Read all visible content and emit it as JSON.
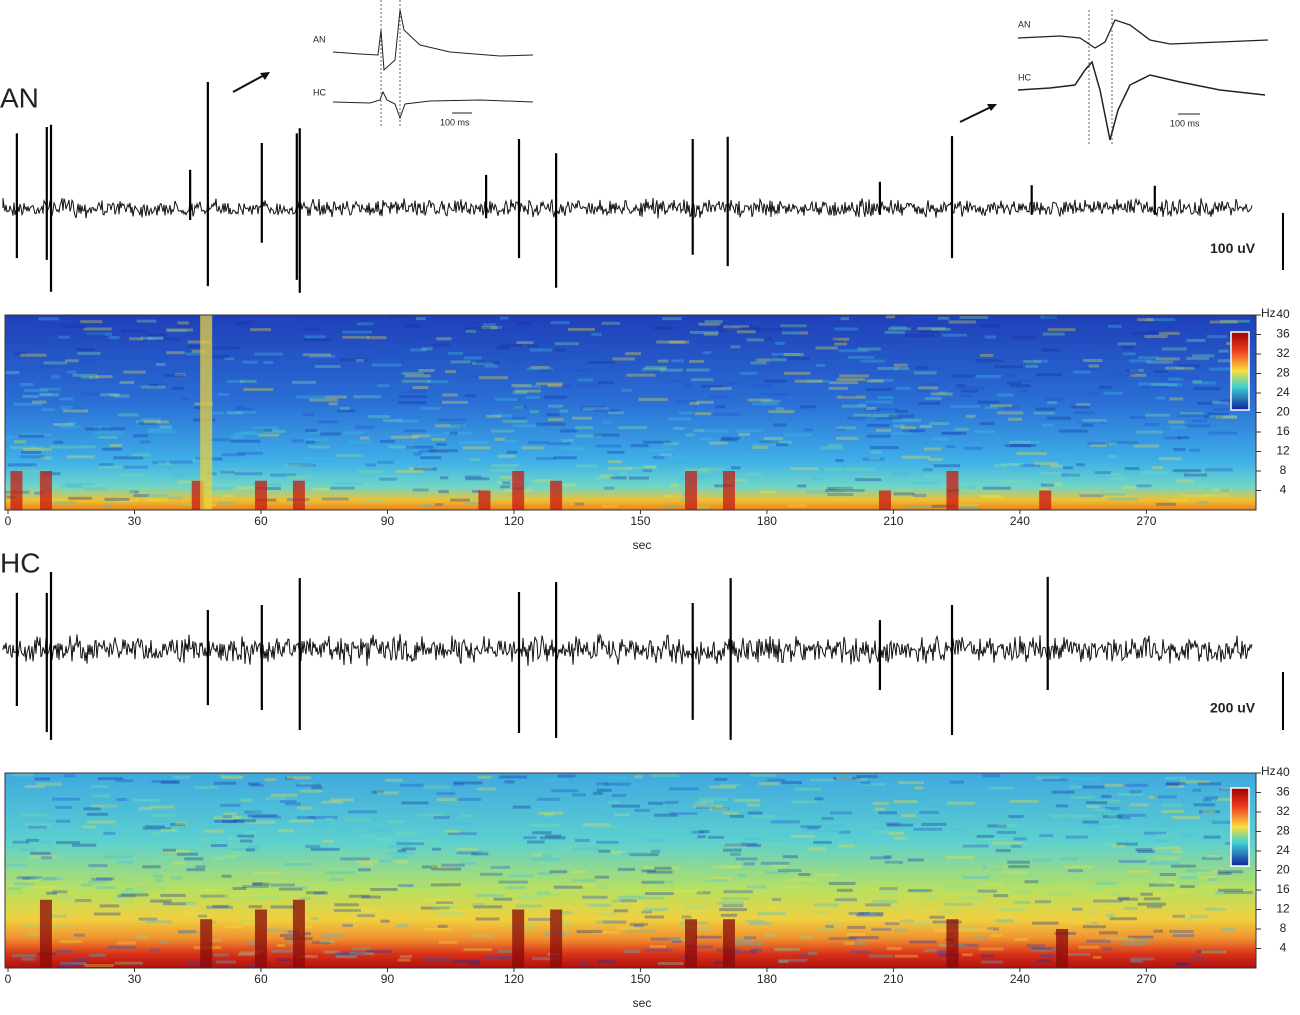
{
  "insets": [
    {
      "top_label": "AN",
      "bottom_label": "HC",
      "scale": "100 ms"
    },
    {
      "top_label": "AN",
      "bottom_label": "HC",
      "scale": "100 ms"
    }
  ],
  "panels": [
    {
      "label": "AN",
      "scale_bar": "100 uV",
      "scale_uv": 100,
      "spikes": [
        {
          "t": 2.1,
          "up": 131,
          "down": -88
        },
        {
          "t": 9.2,
          "up": 142,
          "down": -91
        },
        {
          "t": 10.2,
          "up": 146,
          "down": -147
        },
        {
          "t": 43.2,
          "up": 67,
          "down": -21
        },
        {
          "t": 47.4,
          "up": 221,
          "down": -137
        },
        {
          "t": 60.2,
          "up": 114,
          "down": -61
        },
        {
          "t": 68.5,
          "up": 131,
          "down": -126
        },
        {
          "t": 69.2,
          "up": 140,
          "down": -149
        },
        {
          "t": 113.4,
          "up": 58,
          "down": -18
        },
        {
          "t": 121.2,
          "up": 121,
          "down": -88
        },
        {
          "t": 130.0,
          "up": 96,
          "down": -140
        },
        {
          "t": 162.4,
          "up": 121,
          "down": -82
        },
        {
          "t": 170.7,
          "up": 125,
          "down": -102
        },
        {
          "t": 206.8,
          "up": 46,
          "down": -12
        },
        {
          "t": 223.9,
          "up": 126,
          "down": -88
        },
        {
          "t": 242.8,
          "up": 40,
          "down": -12
        },
        {
          "t": 272.0,
          "up": 39,
          "down": -12
        }
      ],
      "spectrogram": {
        "xlim": [
          0,
          296
        ],
        "xticks": [
          0,
          30,
          60,
          90,
          120,
          150,
          180,
          210,
          240,
          270
        ],
        "xlabel": "sec",
        "ylim": [
          0,
          40
        ],
        "yticks": [
          4,
          8,
          12,
          16,
          20,
          24,
          28,
          32,
          36,
          40
        ],
        "yunit": "Hz",
        "bursts": [
          {
            "t": 2,
            "top_hz": 8
          },
          {
            "t": 9,
            "top_hz": 8
          },
          {
            "t": 45,
            "top_hz": 6
          },
          {
            "t": 47,
            "top_hz": 40
          },
          {
            "t": 60,
            "top_hz": 6
          },
          {
            "t": 69,
            "top_hz": 6
          },
          {
            "t": 113,
            "top_hz": 4
          },
          {
            "t": 121,
            "top_hz": 8
          },
          {
            "t": 130,
            "top_hz": 6
          },
          {
            "t": 162,
            "top_hz": 8
          },
          {
            "t": 171,
            "top_hz": 8
          },
          {
            "t": 208,
            "top_hz": 4
          },
          {
            "t": 224,
            "top_hz": 8
          },
          {
            "t": 246,
            "top_hz": 4
          }
        ]
      }
    },
    {
      "label": "HC",
      "scale_bar": "200 uV",
      "scale_uv": 200,
      "spikes": [
        {
          "t": 2.1,
          "up": 197,
          "down": -193
        },
        {
          "t": 9.2,
          "up": 197,
          "down": -283
        },
        {
          "t": 10.2,
          "up": 269,
          "down": -310
        },
        {
          "t": 47.4,
          "up": 138,
          "down": -190
        },
        {
          "t": 60.2,
          "up": 155,
          "down": -207
        },
        {
          "t": 69.2,
          "up": 248,
          "down": -276
        },
        {
          "t": 121.2,
          "up": 200,
          "down": -286
        },
        {
          "t": 130.0,
          "up": 234,
          "down": -303
        },
        {
          "t": 162.4,
          "up": 162,
          "down": -241
        },
        {
          "t": 171.4,
          "up": 248,
          "down": -310
        },
        {
          "t": 206.8,
          "up": 103,
          "down": -138
        },
        {
          "t": 223.9,
          "up": 155,
          "down": -293
        },
        {
          "t": 246.6,
          "up": 252,
          "down": -138
        }
      ],
      "spectrogram": {
        "xlim": [
          0,
          296
        ],
        "xticks": [
          0,
          30,
          60,
          90,
          120,
          150,
          180,
          210,
          240,
          270
        ],
        "xlabel": "sec",
        "ylim": [
          0,
          40
        ],
        "yticks": [
          4,
          8,
          12,
          16,
          20,
          24,
          28,
          32,
          36,
          40
        ],
        "yunit": "Hz",
        "bursts": [
          {
            "t": 9,
            "top_hz": 14
          },
          {
            "t": 47,
            "top_hz": 10
          },
          {
            "t": 60,
            "top_hz": 12
          },
          {
            "t": 69,
            "top_hz": 14
          },
          {
            "t": 121,
            "top_hz": 12
          },
          {
            "t": 130,
            "top_hz": 12
          },
          {
            "t": 162,
            "top_hz": 10
          },
          {
            "t": 171,
            "top_hz": 10
          },
          {
            "t": 224,
            "top_hz": 10
          },
          {
            "t": 250,
            "top_hz": 8
          }
        ]
      }
    }
  ]
}
